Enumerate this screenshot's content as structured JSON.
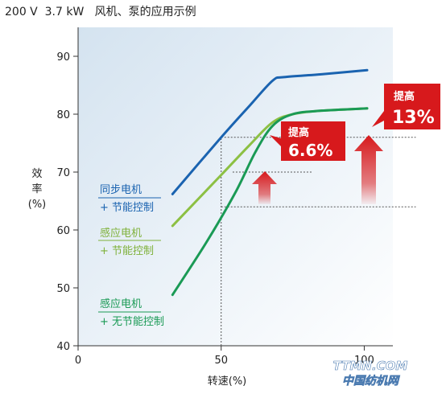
{
  "title": "200 V  3.7 kW   风机、泵的应用示例",
  "chart_data": {
    "type": "line",
    "ylabel": [
      "效",
      "率",
      "(%)"
    ],
    "xlabel": "转速(%)",
    "xlim": [
      0,
      110
    ],
    "ylim": [
      40,
      95
    ],
    "x_ticks": [
      0,
      50,
      100
    ],
    "y_ticks": [
      40,
      50,
      60,
      70,
      80,
      90
    ],
    "grid": false,
    "series": [
      {
        "name": [
          "同步电机",
          "+ 节能控制"
        ],
        "color": "#1a63b0",
        "points": [
          [
            33,
            66.2
          ],
          [
            50,
            76.0
          ],
          [
            60,
            81.5
          ],
          [
            68,
            85.8
          ],
          [
            72,
            86.4
          ],
          [
            85,
            86.9
          ],
          [
            101,
            87.6
          ]
        ]
      },
      {
        "name": [
          "感应电机",
          "+ 节能控制"
        ],
        "color": "#8cc043",
        "points": [
          [
            33,
            60.7
          ],
          [
            50,
            69.5
          ],
          [
            60,
            74.7
          ],
          [
            68,
            78.6
          ],
          [
            75,
            80.0
          ],
          [
            85,
            80.6
          ],
          [
            101,
            81.0
          ]
        ]
      },
      {
        "name": [
          "感应电机",
          "+ 无节能控制"
        ],
        "color": "#1a9a55",
        "points": [
          [
            33,
            48.8
          ],
          [
            45,
            58.0
          ],
          [
            55,
            66.5
          ],
          [
            62,
            73.5
          ],
          [
            68,
            78.0
          ],
          [
            75,
            80.0
          ],
          [
            85,
            80.6
          ],
          [
            101,
            81.0
          ]
        ]
      }
    ],
    "reference_lines": [
      {
        "y": 76.0,
        "x_from": 50,
        "x_to": 118
      },
      {
        "y": 70.0,
        "x_from": 54,
        "x_to": 82
      },
      {
        "y": 64.0,
        "x_from": 50,
        "x_to": 118
      },
      {
        "x": 50,
        "y_from": 40,
        "y_to": 76.0
      }
    ],
    "annotations": [
      {
        "label_top": "提高",
        "label_value": "6.6%"
      },
      {
        "label_top": "提高",
        "label_value": "13%"
      }
    ]
  },
  "watermark": {
    "top": "TTMN.COM",
    "bottom": "中国纺机网"
  },
  "colors": {
    "plot_bg": "#d7e5f0",
    "badge": "#d7191c",
    "arrow": "#d7191c"
  }
}
